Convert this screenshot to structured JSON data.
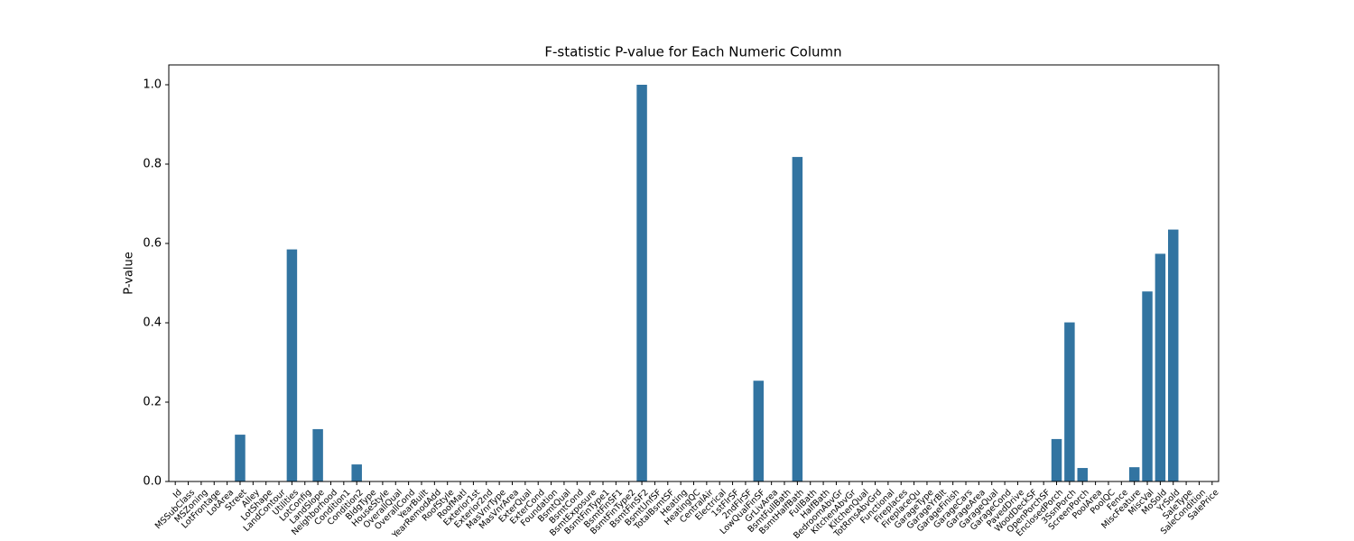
{
  "chart_data": {
    "type": "bar",
    "title": "F-statistic P-value for Each Numeric Column",
    "y_label": "P-value",
    "color": "#3274a1",
    "categories": [
      "Id",
      "MSSubClass",
      "MSZoning",
      "LotFrontage",
      "LotArea",
      "Street",
      "Alley",
      "LotShape",
      "LandContour",
      "Utilities",
      "LotConfig",
      "LandSlope",
      "Neighborhood",
      "Condition1",
      "Condition2",
      "BldgType",
      "HouseStyle",
      "OverallQual",
      "OverallCond",
      "YearBuilt",
      "YearRemodAdd",
      "RoofStyle",
      "RoofMatl",
      "Exterior1st",
      "Exterior2nd",
      "MasVnrType",
      "MasVnrArea",
      "ExterQual",
      "ExterCond",
      "Foundation",
      "BsmtQual",
      "BsmtCond",
      "BsmtExposure",
      "BsmtFinType1",
      "BsmtFinSF1",
      "BsmtFinType2",
      "BsmtFinSF2",
      "BsmtUnfSF",
      "TotalBsmtSF",
      "Heating",
      "HeatingQC",
      "CentralAir",
      "Electrical",
      "1stFlrSF",
      "2ndFlrSF",
      "LowQualFinSF",
      "GrLivArea",
      "BsmtFullBath",
      "BsmtHalfBath",
      "FullBath",
      "HalfBath",
      "BedroomAbvGr",
      "KitchenAbvGr",
      "KitchenQual",
      "TotRmsAbvGrd",
      "Functional",
      "Fireplaces",
      "FireplaceQu",
      "GarageType",
      "GarageYrBlt",
      "GarageFinish",
      "GarageCars",
      "GarageArea",
      "GarageQual",
      "GarageCond",
      "PavedDrive",
      "WoodDeckSF",
      "OpenPorchSF",
      "EnclosedPorch",
      "3SsnPorch",
      "ScreenPorch",
      "PoolArea",
      "PoolQC",
      "Fence",
      "MiscFeature",
      "MiscVal",
      "MoSold",
      "YrSold",
      "SaleType",
      "SaleCondition",
      "SalePrice"
    ],
    "values": [
      0,
      0,
      0,
      0,
      0,
      0.118,
      0,
      0,
      0,
      0.585,
      0,
      0.132,
      0,
      0,
      0.043,
      0,
      0,
      0,
      0,
      0,
      0,
      0,
      0,
      0,
      0,
      0,
      0,
      0,
      0,
      0,
      0,
      0,
      0,
      0,
      0,
      0,
      1.0,
      0,
      0,
      0,
      0,
      0,
      0,
      0,
      0,
      0.254,
      0,
      0,
      0.818,
      0,
      0,
      0,
      0,
      0,
      0,
      0,
      0,
      0,
      0,
      0,
      0,
      0,
      0,
      0,
      0,
      0,
      0,
      0,
      0.107,
      0.401,
      0.034,
      0,
      0,
      0,
      0.036,
      0.479,
      0.574,
      0.635,
      0,
      0,
      0
    ],
    "ylim": [
      0,
      1.05
    ],
    "yticks": [
      {
        "value": 0,
        "label": "0.0"
      },
      0.2,
      0.4,
      0.6,
      0.8,
      {
        "value": 1,
        "label": "1.0"
      }
    ],
    "grid": false
  }
}
